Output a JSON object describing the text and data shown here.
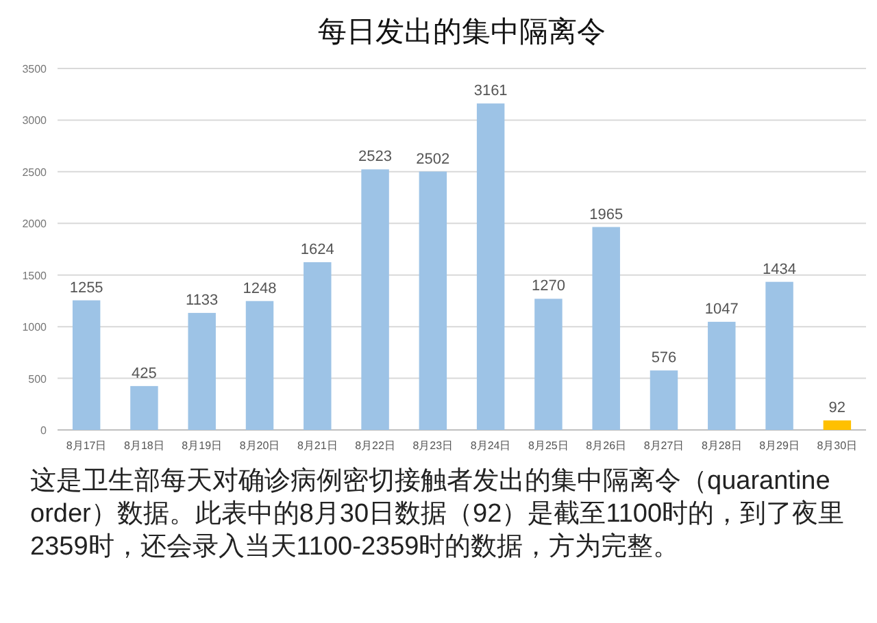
{
  "chart_data": {
    "type": "bar",
    "title": "每日发出的集中隔离令",
    "categories": [
      "8月17日",
      "8月18日",
      "8月19日",
      "8月20日",
      "8月21日",
      "8月22日",
      "8月23日",
      "8月24日",
      "8月25日",
      "8月26日",
      "8月27日",
      "8月28日",
      "8月29日",
      "8月30日"
    ],
    "values": [
      1255,
      425,
      1133,
      1248,
      1624,
      2523,
      2502,
      3161,
      1270,
      1965,
      576,
      1047,
      1434,
      92
    ],
    "colors": [
      "#9dc3e6",
      "#9dc3e6",
      "#9dc3e6",
      "#9dc3e6",
      "#9dc3e6",
      "#9dc3e6",
      "#9dc3e6",
      "#9dc3e6",
      "#9dc3e6",
      "#9dc3e6",
      "#9dc3e6",
      "#9dc3e6",
      "#9dc3e6",
      "#ffc000"
    ],
    "ylim": [
      0,
      3500
    ],
    "yticks": [
      0,
      500,
      1000,
      1500,
      2000,
      2500,
      3000,
      3500
    ],
    "grid": "y",
    "data_labels": true,
    "annotations": [
      "这是卫生部每天对确诊病例密切接触者发出的集中隔离令（quarantine order）数据。此表中的8月30日数据（92）是截至1100时的，到了夜里2359时，还会录入当天1100-2359时的数据，方为完整。"
    ]
  }
}
